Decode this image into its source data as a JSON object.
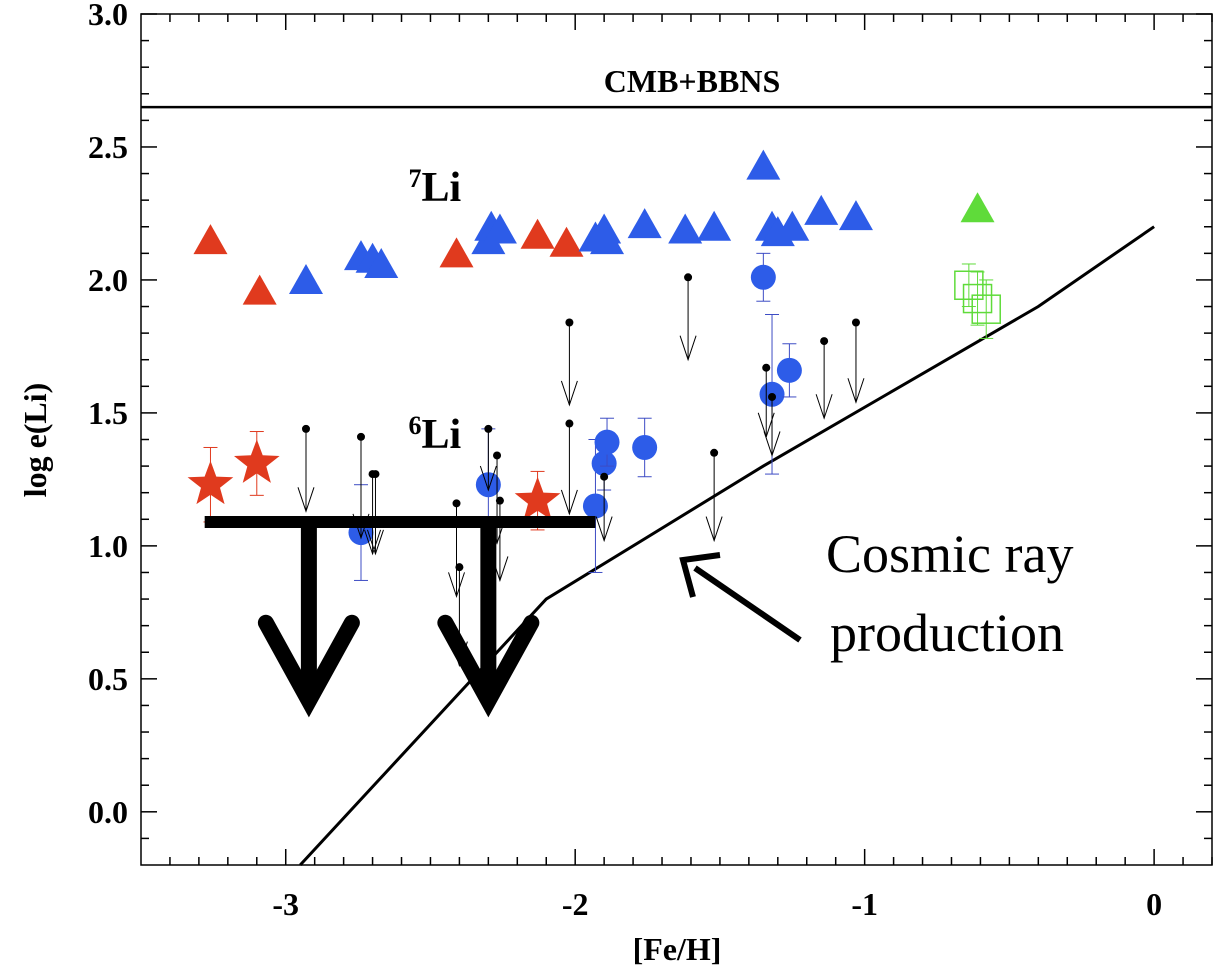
{
  "chart_data": {
    "type": "scatter",
    "xlabel": "[Fe/H]",
    "ylabel": "log e(Li)",
    "xlim": [
      -3.5,
      0.2
    ],
    "ylim": [
      -0.2,
      3.0
    ],
    "x_ticks": [
      -3,
      -2,
      -1,
      0
    ],
    "x_tick_labels": [
      "-3",
      "-2",
      "-1",
      "0"
    ],
    "y_ticks": [
      0.0,
      0.5,
      1.0,
      1.5,
      2.0,
      2.5,
      3.0
    ],
    "y_tick_labels": [
      "0.0",
      "0.5",
      "1.0",
      "1.5",
      "2.0",
      "2.5",
      "3.0"
    ],
    "grid": false,
    "reference_line": {
      "y": 2.65,
      "label": "CMB+BBNS"
    },
    "annotations": {
      "li7": {
        "sup": "7",
        "text": "Li",
        "x": -2.5,
        "y": 2.35
      },
      "li6": {
        "sup": "6",
        "text": "Li",
        "x": -2.5,
        "y": 1.42
      },
      "cosmic_line1": "Cosmic ray",
      "cosmic_line2": "production"
    },
    "cosmic_ray_curve": {
      "x": [
        -2.95,
        -2.1,
        -1.35,
        -0.4,
        0.0
      ],
      "y": [
        -0.2,
        0.8,
        1.3,
        1.9,
        2.2
      ]
    },
    "series": [
      {
        "marker": "triangle",
        "color": "#e03a1e",
        "x": [
          -3.26,
          -3.09,
          -2.41,
          -2.13,
          -2.03
        ],
        "y": [
          2.14,
          1.95,
          2.09,
          2.16,
          2.13
        ]
      },
      {
        "marker": "triangle",
        "color": "#2d5ce8",
        "x": [
          -2.93,
          -2.74,
          -2.7,
          -2.67,
          -2.3,
          -2.29,
          -2.26,
          -1.93,
          -1.9,
          -1.89,
          -1.76,
          -1.62,
          -1.52,
          -1.35,
          -1.32,
          -1.3,
          -1.25,
          -1.15,
          -1.03
        ],
        "y": [
          1.99,
          2.08,
          2.07,
          2.05,
          2.14,
          2.19,
          2.18,
          2.15,
          2.18,
          2.14,
          2.2,
          2.18,
          2.19,
          2.42,
          2.19,
          2.17,
          2.19,
          2.25,
          2.23
        ]
      },
      {
        "marker": "triangle",
        "color": "#5fdb3a",
        "x": [
          -0.61
        ],
        "y": [
          2.26
        ]
      },
      {
        "marker": "star",
        "color": "#e03a1e",
        "x": [
          -3.26,
          -3.1,
          -2.13
        ],
        "y": [
          1.23,
          1.31,
          1.17
        ],
        "err": [
          0.14,
          0.12,
          0.11
        ]
      },
      {
        "marker": "circle",
        "color": "#2d5ce8",
        "x": [
          -2.74,
          -2.3,
          -1.93,
          -1.9,
          -1.89,
          -1.76,
          -1.35,
          -1.32,
          -1.26
        ],
        "y": [
          1.05,
          1.23,
          1.15,
          1.31,
          1.39,
          1.37,
          2.01,
          1.57,
          1.66
        ],
        "err": [
          0.18,
          0.21,
          0.25,
          0.1,
          0.09,
          0.11,
          0.09,
          0.3,
          0.1
        ]
      },
      {
        "marker": "open-square",
        "color": "#5fdb3a",
        "x": [
          -0.64,
          -0.61,
          -0.58
        ],
        "y": [
          1.98,
          1.93,
          1.89
        ],
        "err": [
          0.08,
          0.1,
          0.11
        ]
      },
      {
        "marker": "upper-limit",
        "color": "#000000",
        "x": [
          -2.93,
          -2.74,
          -2.7,
          -2.69,
          -2.41,
          -2.4,
          -2.3,
          -2.27,
          -2.26,
          -2.02,
          -2.02,
          -1.9,
          -1.61,
          -1.52,
          -1.34,
          -1.32,
          -1.14,
          -1.03
        ],
        "y": [
          1.44,
          1.41,
          1.27,
          1.27,
          1.16,
          0.92,
          1.44,
          1.34,
          1.17,
          1.84,
          1.46,
          1.26,
          2.01,
          1.35,
          1.67,
          1.56,
          1.77,
          1.84
        ],
        "arrow_to": [
          1.13,
          1.03,
          0.97,
          0.97,
          0.81,
          0.55,
          1.21,
          1.01,
          0.87,
          1.53,
          1.12,
          1.02,
          1.7,
          1.02,
          1.41,
          1.34,
          1.48,
          1.54
        ]
      }
    ],
    "upper_limit_bar": {
      "y": 1.09,
      "x_start": -3.28,
      "x_end": -1.93,
      "arrows": [
        {
          "x": -2.92,
          "to": 0.38
        },
        {
          "x": -2.3,
          "to": 0.38
        }
      ]
    }
  }
}
